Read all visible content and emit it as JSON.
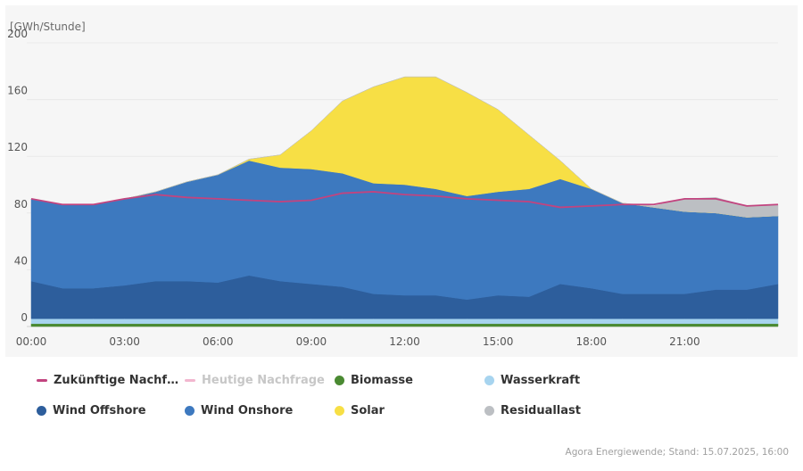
{
  "chart_data": {
    "type": "area",
    "ylabel": "[GWh/Stunde]",
    "ylim": [
      0,
      200
    ],
    "yticks": [
      0,
      40,
      80,
      120,
      160,
      200
    ],
    "xticks": [
      "00:00",
      "03:00",
      "06:00",
      "09:00",
      "12:00",
      "15:00",
      "18:00",
      "21:00"
    ],
    "x": [
      "00:00",
      "01:00",
      "02:00",
      "03:00",
      "04:00",
      "05:00",
      "06:00",
      "07:00",
      "08:00",
      "09:00",
      "10:00",
      "11:00",
      "12:00",
      "13:00",
      "14:00",
      "15:00",
      "16:00",
      "17:00",
      "18:00",
      "19:00",
      "20:00",
      "21:00",
      "22:00",
      "23:00",
      "24:00"
    ],
    "stack_order": [
      "Biomasse",
      "Wasserkraft",
      "Wind Offshore",
      "Wind Onshore",
      "Solar",
      "Residuallast"
    ],
    "series": [
      {
        "name": "Biomasse",
        "color": "#4a8a32",
        "values": [
          2,
          2,
          2,
          2,
          2,
          2,
          2,
          2,
          2,
          2,
          2,
          2,
          2,
          2,
          2,
          2,
          2,
          2,
          2,
          2,
          2,
          2,
          2,
          2,
          2
        ]
      },
      {
        "name": "Wasserkraft",
        "color": "#a7d4ef",
        "values": [
          3.5,
          3.5,
          3.5,
          3.5,
          3.5,
          3.5,
          3.5,
          3.5,
          3.5,
          3.5,
          3.5,
          3.5,
          3.5,
          3.5,
          3.5,
          3.5,
          3.5,
          3.5,
          3.5,
          3.5,
          3.5,
          3.5,
          3.5,
          3.5,
          3.5
        ]
      },
      {
        "name": "Wind Offshore",
        "color": "#2d5e9c",
        "values": [
          26.5,
          21.5,
          21.5,
          23.5,
          26.5,
          26.5,
          25.5,
          30.5,
          26.5,
          24.5,
          22.5,
          17.5,
          16.5,
          16.5,
          13.5,
          16.5,
          15.5,
          24.5,
          21.5,
          17.5,
          17.5,
          17.5,
          20.5,
          20.5,
          24.5
        ]
      },
      {
        "name": "Wind Onshore",
        "color": "#3d79bf",
        "values": [
          58,
          59,
          59,
          61,
          63,
          70,
          76,
          81,
          80,
          81,
          80,
          78,
          78,
          75,
          73,
          73,
          76,
          74,
          70,
          64,
          61,
          58,
          54,
          51,
          48
        ]
      },
      {
        "name": "Solar",
        "color": "#f7df45",
        "values": [
          0,
          0,
          0,
          0,
          0,
          0,
          0,
          1,
          9,
          27,
          51,
          68,
          76,
          79,
          73,
          58,
          38,
          13,
          0,
          0,
          0,
          0,
          0,
          0,
          0
        ]
      },
      {
        "name": "Residuallast",
        "color": "#bcbfc3",
        "values": [
          0,
          0,
          0,
          0,
          0,
          0,
          0,
          0,
          0,
          0,
          0,
          0,
          0,
          0,
          0,
          0,
          0,
          0,
          0,
          0,
          1,
          9,
          11,
          8,
          8
        ]
      },
      {
        "name": "Zukünftige Nachfrage",
        "color": "#c2447f",
        "kind": "line",
        "values": [
          90,
          86,
          86,
          90,
          93,
          91,
          90,
          89,
          88,
          89,
          94,
          95,
          93,
          92,
          90,
          89,
          88,
          84,
          85,
          86,
          86,
          90,
          90,
          85,
          86
        ]
      }
    ],
    "legend": [
      {
        "label": "Zukünftige Nachf…",
        "color": "#c2447f",
        "marker": "line",
        "active": true
      },
      {
        "label": "Heutige Nachfrage",
        "color": "#f2b6cf",
        "marker": "line",
        "active": false
      },
      {
        "label": "Biomasse",
        "color": "#4a8a32",
        "marker": "dot",
        "active": true
      },
      {
        "label": "Wasserkraft",
        "color": "#a7d4ef",
        "marker": "dot",
        "active": true
      },
      {
        "label": "Wind Offshore",
        "color": "#2d5e9c",
        "marker": "dot",
        "active": true
      },
      {
        "label": "Wind Onshore",
        "color": "#3d79bf",
        "marker": "dot",
        "active": true
      },
      {
        "label": "Solar",
        "color": "#f7df45",
        "marker": "dot",
        "active": true
      },
      {
        "label": "Residuallast",
        "color": "#bcbfc3",
        "marker": "dot",
        "active": true
      }
    ],
    "legend_position": "bottom",
    "grid": true
  },
  "source": "Agora Energiewende; Stand: 15.07.2025, 16:00"
}
